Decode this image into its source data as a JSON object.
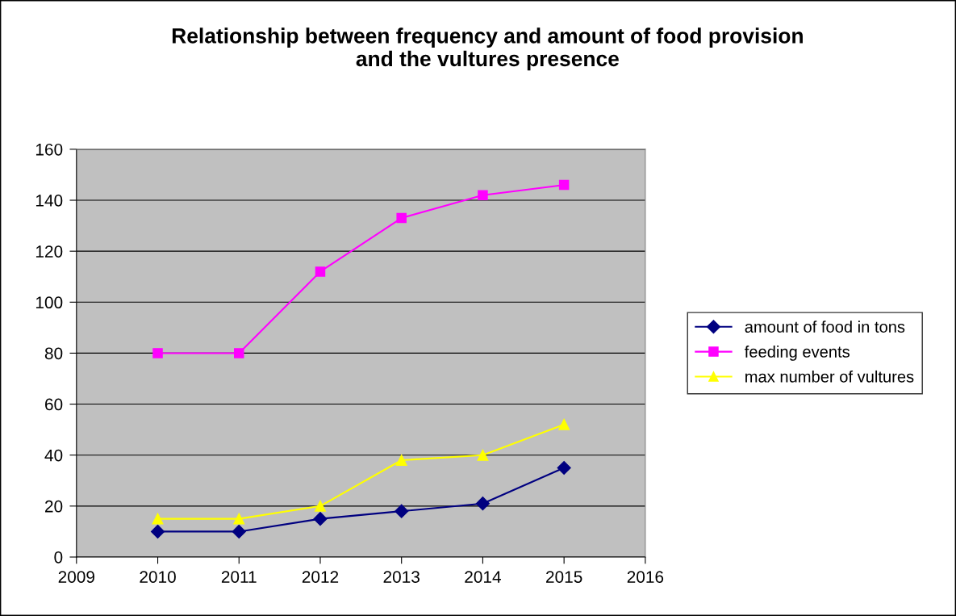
{
  "chart_data": {
    "type": "line",
    "title": "Relationship between frequency and amount of food provision\nand the vultures presence",
    "x": [
      2010,
      2011,
      2012,
      2013,
      2014,
      2015
    ],
    "series": [
      {
        "name": "amount of food in tons",
        "color": "#000080",
        "marker": "diamond",
        "values": [
          10,
          10,
          15,
          18,
          21,
          35
        ]
      },
      {
        "name": "feeding events",
        "color": "#ff00ff",
        "marker": "square",
        "values": [
          80,
          80,
          112,
          133,
          142,
          146
        ]
      },
      {
        "name": "max number of vultures",
        "color": "#ffff00",
        "marker": "triangle",
        "values": [
          15,
          15,
          20,
          38,
          40,
          52
        ]
      }
    ],
    "xlim": [
      2009,
      2016
    ],
    "xticks": [
      2009,
      2010,
      2011,
      2012,
      2013,
      2014,
      2015,
      2016
    ],
    "ylim": [
      0,
      160
    ],
    "yticks": [
      0,
      20,
      40,
      60,
      80,
      100,
      120,
      140,
      160
    ],
    "grid": "y",
    "legend": "right",
    "line_style": "solid"
  }
}
